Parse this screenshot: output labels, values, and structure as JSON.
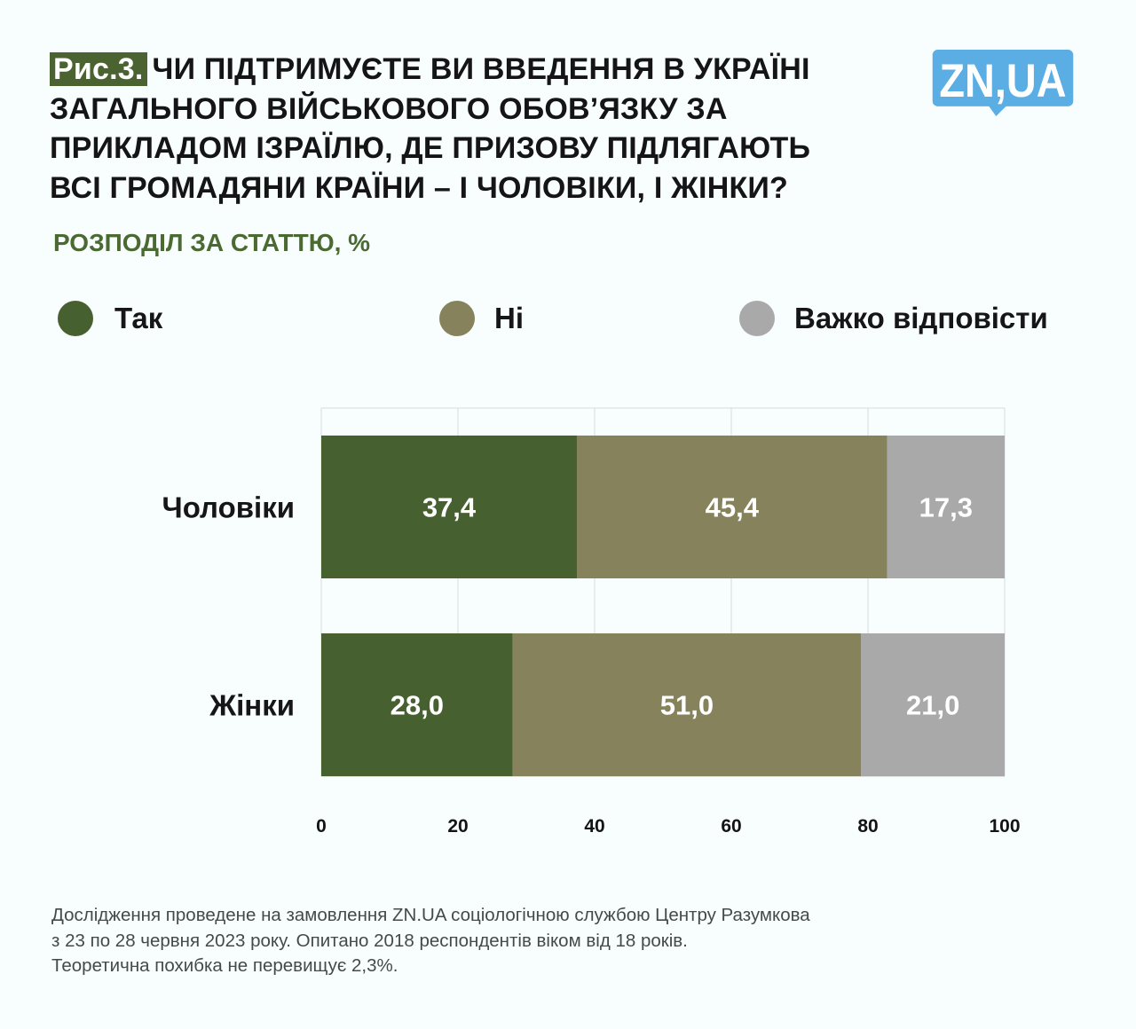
{
  "header": {
    "figure_label": "Рис.3.",
    "title": "ЧИ ПІДТРИМУЄТЕ ВИ ВВЕДЕННЯ В УКРАЇНІ ЗАГАЛЬНОГО ВІЙСЬКОВОГО ОБОВ’ЯЗКУ ЗА ПРИКЛАДОМ ІЗРАЇЛЮ, ДЕ ПРИЗОВУ ПІДЛЯГАЮТЬ ВСІ ГРОМАДЯНИ КРАЇНИ – І ЧОЛОВІКИ, І ЖІНКИ?",
    "title_lines": [
      "ЧИ ПІДТРИМУЄТЕ ВИ ВВЕДЕННЯ В УКРАЇНІ",
      "ЗАГАЛЬНОГО ВІЙСЬКОВОГО ОБОВ’ЯЗКУ ЗА",
      "ПРИКЛАДОМ ІЗРАЇЛЮ, ДЕ ПРИЗОВУ ПІДЛЯГАЮТЬ",
      "ВСІ ГРОМАДЯНИ КРАЇНИ – І ЧОЛОВІКИ, І ЖІНКИ?"
    ],
    "subtitle": "РОЗПОДІЛ ЗА СТАТТЮ, %",
    "logo_text": "ZN,UA"
  },
  "colors": {
    "accent": "#4a6331",
    "subtitle": "#4b6a32",
    "logo": "#5aaee3",
    "grid": "#d6dbdd"
  },
  "chart_data": {
    "type": "bar",
    "orientation": "horizontal",
    "stacked": true,
    "title": "РОЗПОДІЛ ЗА СТАТТЮ, %",
    "categories": [
      "Чоловіки",
      "Жінки"
    ],
    "series": [
      {
        "name": "Так",
        "color": "#476030",
        "values": [
          37.4,
          28.0
        ],
        "labels": [
          "37,4",
          "28,0"
        ]
      },
      {
        "name": "Ні",
        "color": "#86825c",
        "values": [
          45.4,
          51.0
        ],
        "labels": [
          "45,4",
          "51,0"
        ]
      },
      {
        "name": "Важко відповісти",
        "color": "#a9a9a9",
        "values": [
          17.3,
          21.0
        ],
        "labels": [
          "17,3",
          "21,0"
        ]
      }
    ],
    "xlim": [
      0,
      100
    ],
    "xticks": [
      0,
      20,
      40,
      60,
      80,
      100
    ],
    "xtick_labels": [
      "0",
      "20",
      "40",
      "60",
      "80",
      "100"
    ],
    "xlabel": "",
    "ylabel": "",
    "grid": true,
    "legend_position": "top"
  },
  "footer": {
    "lines": [
      "Дослідження проведене на замовлення ZN.UA соціологічною службою Центру Разумкова",
      "з 23 по 28 червня 2023 року. Опитано 2018 респондентів віком від 18 років.",
      "Теоретична похибка не перевищує 2,3%."
    ]
  }
}
